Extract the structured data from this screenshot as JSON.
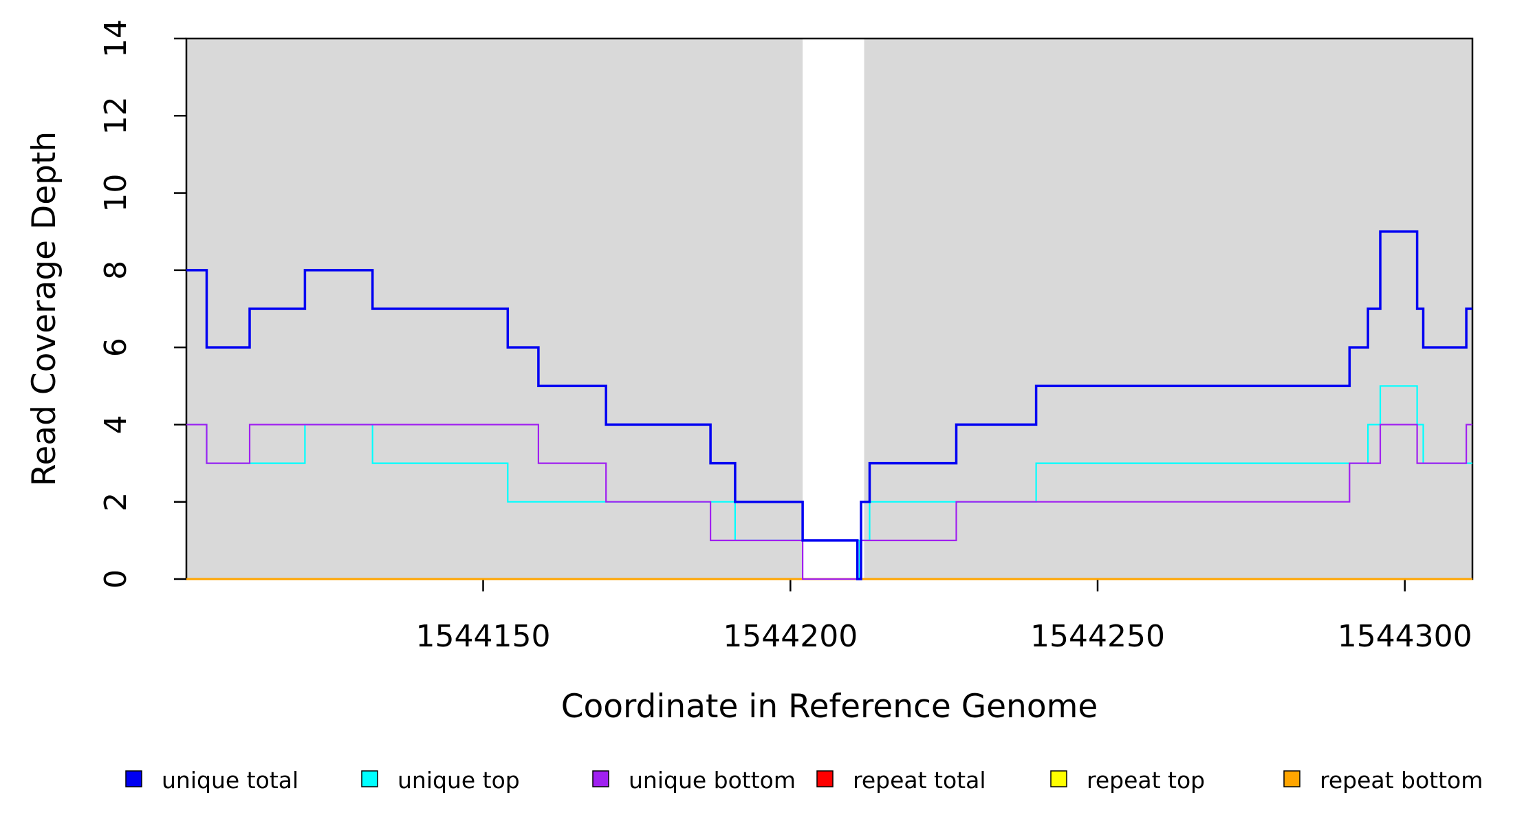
{
  "chart_data": {
    "type": "step-line",
    "title": "",
    "xlabel": "Coordinate in Reference Genome",
    "ylabel": "Read Coverage Depth",
    "x_domain": [
      1544101.7,
      1544311.0
    ],
    "y_domain": [
      0,
      14
    ],
    "x_ticks": [
      1544150,
      1544200,
      1544250,
      1544300
    ],
    "y_ticks": [
      0,
      2,
      4,
      6,
      8,
      10,
      12,
      14
    ],
    "grid": false,
    "legend_position": "bottom",
    "background_shading": {
      "color": "#D9D9D9",
      "regions": [
        [
          1544101.7,
          1544202.0
        ],
        [
          1544212.0,
          1544311.0
        ]
      ]
    },
    "series": [
      {
        "name": "repeat top",
        "color": "#FFFF00",
        "width": 2.2,
        "breakpoints": [
          [
            1544101.7,
            0
          ]
        ]
      },
      {
        "name": "repeat total",
        "color": "#FF0000",
        "width": 2.2,
        "breakpoints": [
          [
            1544101.7,
            0
          ]
        ]
      },
      {
        "name": "repeat bottom",
        "color": "#FFA500",
        "width": 3.0,
        "breakpoints": [
          [
            1544101.7,
            0
          ]
        ]
      },
      {
        "name": "unique top",
        "color": "#00FFFF",
        "width": 2.2,
        "breakpoints": [
          [
            1544101.7,
            4
          ],
          [
            1544105,
            3
          ],
          [
            1544121,
            4
          ],
          [
            1544132,
            3
          ],
          [
            1544154,
            2
          ],
          [
            1544191,
            1
          ],
          [
            1544211.25,
            0
          ],
          [
            1544211.5,
            1
          ],
          [
            1544212.9,
            2
          ],
          [
            1544240,
            3
          ],
          [
            1544294,
            4
          ],
          [
            1544296,
            5
          ],
          [
            1544302,
            4
          ],
          [
            1544303,
            3
          ]
        ]
      },
      {
        "name": "unique bottom",
        "color": "#A020F0",
        "width": 2.2,
        "breakpoints": [
          [
            1544101.7,
            4
          ],
          [
            1544105,
            3
          ],
          [
            1544112,
            4
          ],
          [
            1544159,
            3
          ],
          [
            1544170,
            2
          ],
          [
            1544187,
            1
          ],
          [
            1544202,
            0
          ],
          [
            1544211.5,
            1
          ],
          [
            1544227,
            2
          ],
          [
            1544291,
            3
          ],
          [
            1544296,
            4
          ],
          [
            1544302,
            3
          ],
          [
            1544310,
            4
          ]
        ]
      },
      {
        "name": "unique total",
        "color": "#0000F2",
        "width": 3.5,
        "breakpoints": [
          [
            1544101.7,
            8
          ],
          [
            1544105,
            6
          ],
          [
            1544112,
            7
          ],
          [
            1544121,
            8
          ],
          [
            1544132,
            7
          ],
          [
            1544154,
            6
          ],
          [
            1544159,
            5
          ],
          [
            1544170,
            4
          ],
          [
            1544187,
            3
          ],
          [
            1544191,
            2
          ],
          [
            1544202,
            1
          ],
          [
            1544210.9,
            0
          ],
          [
            1544211.5,
            2
          ],
          [
            1544212.9,
            3
          ],
          [
            1544227,
            4
          ],
          [
            1544240,
            5
          ],
          [
            1544291,
            6
          ],
          [
            1544294,
            7
          ],
          [
            1544296,
            9
          ],
          [
            1544302,
            7
          ],
          [
            1544303,
            6
          ],
          [
            1544310,
            7
          ]
        ]
      }
    ],
    "legend": [
      {
        "label": "unique total",
        "color": "#0000F2"
      },
      {
        "label": "unique top",
        "color": "#00FFFF"
      },
      {
        "label": "unique bottom",
        "color": "#A020F0"
      },
      {
        "label": "repeat total",
        "color": "#FF0000"
      },
      {
        "label": "repeat top",
        "color": "#FFFF00"
      },
      {
        "label": "repeat bottom",
        "color": "#FFA500"
      }
    ]
  }
}
